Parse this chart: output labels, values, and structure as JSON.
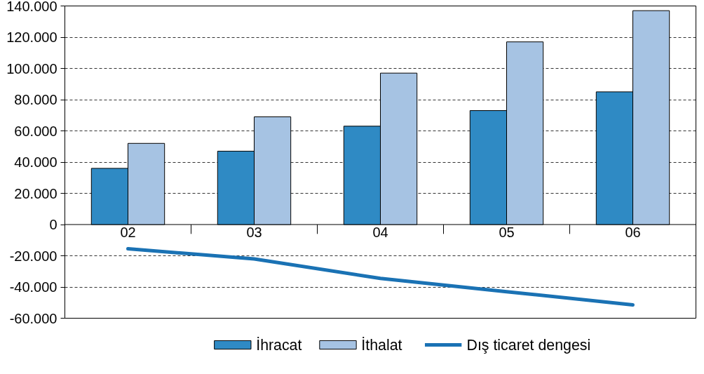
{
  "chart_data": {
    "type": "bar",
    "categories": [
      "02",
      "03",
      "04",
      "05",
      "06"
    ],
    "series": [
      {
        "name": "İhracat",
        "color": "#2f8ac4",
        "values": [
          36000,
          47000,
          63000,
          73000,
          85000
        ]
      },
      {
        "name": "İthalat",
        "color": "#a6c3e3",
        "values": [
          52000,
          69000,
          97000,
          117000,
          137000
        ]
      },
      {
        "name": "Dış ticaret dengesi",
        "type": "line",
        "color": "#1a72b4",
        "values": [
          -15500,
          -22000,
          -34500,
          -43000,
          -51500
        ]
      }
    ],
    "ylim": [
      -60000,
      140000
    ],
    "yticks": [
      {
        "value": -60000,
        "label": "-60.000"
      },
      {
        "value": -40000,
        "label": "-40.000"
      },
      {
        "value": -20000,
        "label": "-20.000"
      },
      0,
      {
        "value": 20000,
        "label": "20.000"
      },
      {
        "value": 40000,
        "label": "40.000"
      },
      {
        "value": 60000,
        "label": "60.000"
      },
      {
        "value": 80000,
        "label": "80.000"
      },
      {
        "value": 100000,
        "label": "100.000"
      },
      {
        "value": 120000,
        "label": "120.000"
      },
      {
        "value": 140000,
        "label": "140.000"
      }
    ],
    "grid": "y",
    "legend": "bottom",
    "line_style": "solid",
    "marker": "none"
  }
}
